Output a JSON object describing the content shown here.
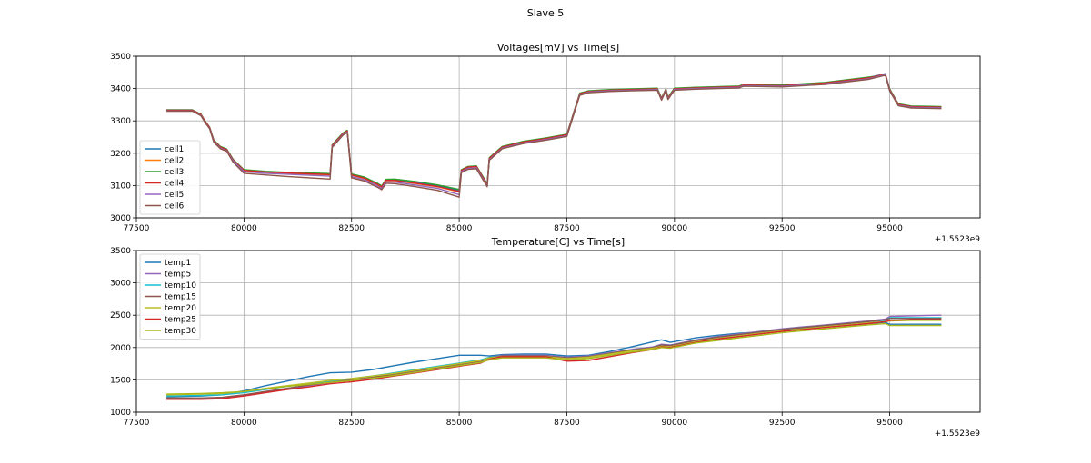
{
  "figure_title": "Slave 5",
  "chart_data": [
    {
      "type": "line",
      "title": "Voltages[mV] vs Time[s]",
      "xlabel": "",
      "ylabel": "",
      "x_offset_label": "+1.5523e9",
      "xlim": [
        77500,
        97100
      ],
      "ylim": [
        3000,
        3500
      ],
      "xticks": [
        77500,
        80000,
        82500,
        85000,
        87500,
        90000,
        92500,
        95000
      ],
      "yticks": [
        3000,
        3100,
        3200,
        3300,
        3400,
        3500
      ],
      "grid": true,
      "legend_position": "lower-left",
      "x": [
        78200,
        78800,
        79000,
        79100,
        79200,
        79300,
        79450,
        79600,
        79750,
        80000,
        80500,
        81000,
        82000,
        82050,
        82300,
        82400,
        82500,
        82800,
        83100,
        83200,
        83300,
        83500,
        84000,
        84500,
        85000,
        85050,
        85200,
        85400,
        85650,
        85700,
        86000,
        86500,
        87000,
        87500,
        87600,
        87800,
        88000,
        88500,
        89000,
        89600,
        89700,
        89800,
        89850,
        90000,
        90500,
        91500,
        91600,
        92500,
        93500,
        94500,
        94900,
        95000,
        95200,
        95500,
        96200
      ],
      "series": [
        {
          "name": "cell1",
          "color": "#1f77b4",
          "values": [
            3334,
            3334,
            3320,
            3298,
            3280,
            3240,
            3220,
            3212,
            3180,
            3148,
            3143,
            3140,
            3136,
            3225,
            3262,
            3270,
            3135,
            3125,
            3106,
            3098,
            3118,
            3118,
            3110,
            3100,
            3085,
            3148,
            3158,
            3160,
            3105,
            3185,
            3220,
            3236,
            3246,
            3258,
            3300,
            3385,
            3392,
            3396,
            3398,
            3400,
            3370,
            3398,
            3372,
            3400,
            3403,
            3407,
            3412,
            3410,
            3418,
            3434,
            3446,
            3398,
            3352,
            3345,
            3343
          ]
        },
        {
          "name": "cell2",
          "color": "#ff7f0e",
          "values": [
            3333,
            3333,
            3319,
            3297,
            3279,
            3238,
            3218,
            3210,
            3178,
            3146,
            3141,
            3138,
            3133,
            3223,
            3260,
            3268,
            3132,
            3122,
            3103,
            3095,
            3115,
            3115,
            3106,
            3096,
            3080,
            3146,
            3156,
            3158,
            3102,
            3183,
            3218,
            3234,
            3244,
            3256,
            3298,
            3383,
            3391,
            3395,
            3397,
            3399,
            3368,
            3397,
            3370,
            3399,
            3402,
            3406,
            3411,
            3409,
            3417,
            3432,
            3445,
            3396,
            3351,
            3344,
            3342
          ]
        },
        {
          "name": "cell3",
          "color": "#2ca02c",
          "values": [
            3334,
            3334,
            3321,
            3299,
            3281,
            3241,
            3221,
            3213,
            3181,
            3149,
            3144,
            3141,
            3137,
            3226,
            3263,
            3271,
            3136,
            3126,
            3107,
            3099,
            3119,
            3120,
            3112,
            3102,
            3088,
            3149,
            3159,
            3161,
            3106,
            3186,
            3221,
            3237,
            3247,
            3259,
            3301,
            3386,
            3393,
            3397,
            3399,
            3401,
            3371,
            3399,
            3373,
            3401,
            3404,
            3408,
            3413,
            3411,
            3419,
            3435,
            3442,
            3399,
            3353,
            3346,
            3344
          ]
        },
        {
          "name": "cell4",
          "color": "#d62728",
          "values": [
            3333,
            3333,
            3320,
            3298,
            3280,
            3239,
            3219,
            3211,
            3179,
            3147,
            3142,
            3139,
            3134,
            3224,
            3261,
            3269,
            3133,
            3123,
            3104,
            3096,
            3116,
            3116,
            3107,
            3097,
            3082,
            3147,
            3157,
            3159,
            3103,
            3184,
            3219,
            3235,
            3245,
            3257,
            3299,
            3384,
            3391,
            3395,
            3397,
            3399,
            3369,
            3397,
            3371,
            3399,
            3402,
            3406,
            3411,
            3409,
            3417,
            3433,
            3444,
            3397,
            3351,
            3344,
            3342
          ]
        },
        {
          "name": "cell5",
          "color": "#9467bd",
          "values": [
            3331,
            3331,
            3317,
            3295,
            3277,
            3236,
            3216,
            3208,
            3176,
            3143,
            3138,
            3135,
            3129,
            3220,
            3258,
            3266,
            3128,
            3118,
            3099,
            3091,
            3111,
            3111,
            3101,
            3091,
            3072,
            3143,
            3153,
            3155,
            3099,
            3180,
            3216,
            3232,
            3242,
            3254,
            3296,
            3381,
            3389,
            3393,
            3395,
            3397,
            3366,
            3395,
            3368,
            3397,
            3400,
            3404,
            3409,
            3407,
            3415,
            3430,
            3443,
            3394,
            3349,
            3342,
            3340
          ]
        },
        {
          "name": "cell6",
          "color": "#8c564b",
          "values": [
            3330,
            3330,
            3316,
            3294,
            3276,
            3234,
            3214,
            3206,
            3172,
            3138,
            3133,
            3128,
            3120,
            3218,
            3256,
            3264,
            3124,
            3114,
            3095,
            3087,
            3107,
            3106,
            3096,
            3085,
            3064,
            3140,
            3150,
            3152,
            3096,
            3178,
            3214,
            3230,
            3240,
            3252,
            3294,
            3379,
            3387,
            3391,
            3393,
            3395,
            3364,
            3393,
            3366,
            3395,
            3398,
            3402,
            3407,
            3405,
            3413,
            3428,
            3441,
            3392,
            3347,
            3340,
            3338
          ]
        }
      ]
    },
    {
      "type": "line",
      "title": "Temperature[C] vs Time[s]",
      "xlabel": "",
      "ylabel": "",
      "x_offset_label": "+1.5523e9",
      "xlim": [
        77500,
        97100
      ],
      "ylim": [
        1000,
        3500
      ],
      "xticks": [
        77500,
        80000,
        82500,
        85000,
        87500,
        90000,
        92500,
        95000
      ],
      "yticks": [
        1000,
        1500,
        2000,
        2500,
        3000,
        3500
      ],
      "grid": true,
      "legend_position": "upper-left",
      "x": [
        78200,
        79000,
        79500,
        80000,
        80500,
        81000,
        81500,
        82000,
        82500,
        83000,
        83500,
        84000,
        84500,
        85000,
        85500,
        85700,
        86000,
        86500,
        87000,
        87500,
        88000,
        88500,
        89000,
        89500,
        89700,
        89900,
        90500,
        91000,
        91500,
        92000,
        92500,
        93000,
        93500,
        94000,
        94500,
        94900,
        95000,
        95500,
        96200
      ],
      "series": [
        {
          "name": "temp1",
          "color": "#1f77b4",
          "values": [
            1240,
            1250,
            1270,
            1330,
            1410,
            1480,
            1550,
            1610,
            1620,
            1660,
            1720,
            1780,
            1830,
            1880,
            1880,
            1870,
            1890,
            1900,
            1900,
            1870,
            1880,
            1940,
            2010,
            2090,
            2120,
            2080,
            2150,
            2190,
            2220,
            2240,
            2270,
            2300,
            2320,
            2340,
            2370,
            2390,
            2360,
            2360,
            2360
          ]
        },
        {
          "name": "temp5",
          "color": "#9467bd",
          "values": [
            1210,
            1210,
            1220,
            1260,
            1310,
            1360,
            1410,
            1460,
            1500,
            1540,
            1590,
            1640,
            1690,
            1740,
            1800,
            1850,
            1880,
            1880,
            1880,
            1850,
            1870,
            1920,
            1970,
            2010,
            2050,
            2040,
            2120,
            2170,
            2210,
            2250,
            2290,
            2320,
            2350,
            2380,
            2410,
            2440,
            2480,
            2490,
            2500
          ]
        },
        {
          "name": "temp10",
          "color": "#17becf",
          "values": [
            1250,
            1260,
            1270,
            1300,
            1350,
            1400,
            1440,
            1480,
            1520,
            1560,
            1610,
            1660,
            1710,
            1760,
            1810,
            1850,
            1870,
            1870,
            1870,
            1840,
            1860,
            1910,
            1960,
            2000,
            2040,
            2030,
            2110,
            2160,
            2200,
            2240,
            2280,
            2310,
            2340,
            2370,
            2400,
            2420,
            2460,
            2460,
            2460
          ]
        },
        {
          "name": "temp15",
          "color": "#8c564b",
          "values": [
            1220,
            1220,
            1230,
            1270,
            1320,
            1370,
            1420,
            1460,
            1500,
            1540,
            1590,
            1640,
            1690,
            1740,
            1790,
            1840,
            1870,
            1870,
            1870,
            1840,
            1860,
            1910,
            1960,
            2000,
            2040,
            2030,
            2110,
            2160,
            2200,
            2240,
            2280,
            2310,
            2340,
            2370,
            2400,
            2430,
            2450,
            2450,
            2450
          ]
        },
        {
          "name": "temp20",
          "color": "#bcbd22",
          "values": [
            1270,
            1280,
            1290,
            1320,
            1370,
            1410,
            1450,
            1490,
            1520,
            1560,
            1600,
            1650,
            1700,
            1750,
            1800,
            1840,
            1860,
            1860,
            1860,
            1830,
            1850,
            1900,
            1950,
            1990,
            2020,
            2010,
            2090,
            2140,
            2180,
            2220,
            2260,
            2290,
            2320,
            2350,
            2380,
            2400,
            2410,
            2420,
            2420
          ]
        },
        {
          "name": "temp25",
          "color": "#d62728",
          "values": [
            1200,
            1200,
            1210,
            1250,
            1300,
            1350,
            1390,
            1440,
            1470,
            1510,
            1560,
            1610,
            1660,
            1710,
            1760,
            1820,
            1860,
            1860,
            1860,
            1790,
            1800,
            1860,
            1920,
            1970,
            2010,
            2000,
            2080,
            2130,
            2170,
            2210,
            2250,
            2280,
            2310,
            2340,
            2370,
            2400,
            2420,
            2430,
            2430
          ]
        },
        {
          "name": "temp30",
          "color": "#a8b81a",
          "values": [
            1280,
            1290,
            1300,
            1320,
            1360,
            1400,
            1430,
            1460,
            1490,
            1530,
            1570,
            1620,
            1670,
            1720,
            1770,
            1810,
            1840,
            1840,
            1840,
            1810,
            1830,
            1880,
            1930,
            1970,
            2000,
            1990,
            2070,
            2110,
            2150,
            2190,
            2230,
            2260,
            2290,
            2320,
            2350,
            2370,
            2340,
            2340,
            2340
          ]
        }
      ]
    }
  ]
}
